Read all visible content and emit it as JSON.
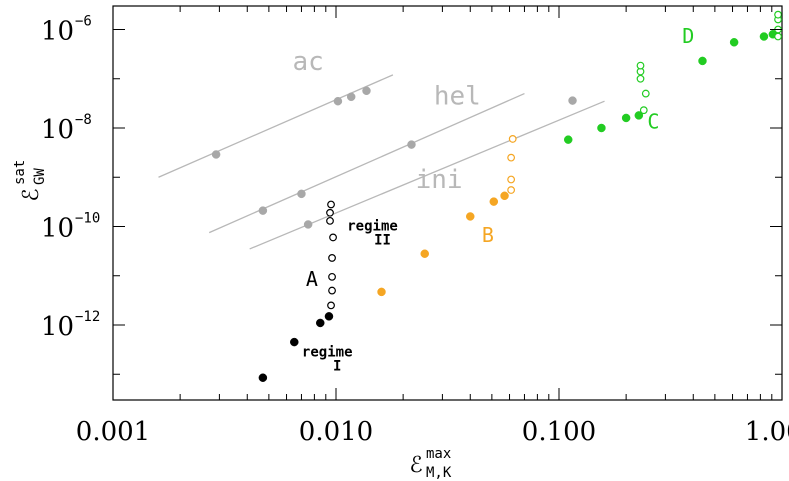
{
  "chart_data": {
    "type": "scatter",
    "xscale": "log",
    "yscale": "log",
    "xlim": [
      0.001,
      1.0
    ],
    "ylim": [
      3e-14,
      3e-06
    ],
    "xlabel": {
      "main": "ℰ",
      "sup": "max",
      "sub": "M,K"
    },
    "ylabel": {
      "main": "ℰ",
      "sup": "sat",
      "sub": "GW"
    },
    "x_ticks": [
      {
        "value": 0.001,
        "label": "0.001"
      },
      {
        "value": 0.01,
        "label": "0.010"
      },
      {
        "value": 0.1,
        "label": "0.100"
      },
      {
        "value": 1.0,
        "label": "1.000"
      }
    ],
    "y_ticks": [
      {
        "value": 1e-12,
        "base": "10",
        "exp": "−12"
      },
      {
        "value": 1e-10,
        "base": "10",
        "exp": "−10"
      },
      {
        "value": 1e-08,
        "base": "10",
        "exp": "−8"
      },
      {
        "value": 1e-06,
        "base": "10",
        "exp": "−6"
      }
    ],
    "y_minor_ticks": [
      1e-13,
      1e-11,
      1e-09,
      1e-07
    ],
    "reference_lines": [
      {
        "label": "ac",
        "x": [
          0.0016,
          0.018
        ],
        "y": [
          1e-09,
          1.2e-07
        ],
        "label_at": [
          0.0075,
          1.5e-07
        ]
      },
      {
        "label": "hel",
        "x": [
          0.0027,
          0.07
        ],
        "y": [
          7.5e-11,
          5e-08
        ],
        "label_at": [
          0.035,
          3e-08
        ]
      },
      {
        "label": "ini",
        "x": [
          0.0041,
          0.16
        ],
        "y": [
          3.5e-11,
          3.5e-08
        ],
        "label_at": [
          0.029,
          6e-10
        ]
      }
    ],
    "series": [
      {
        "color": "#a8a8a8",
        "filled": true,
        "points": [
          [
            0.0029,
            2.9e-09
          ],
          [
            0.0102,
            3.5e-08
          ],
          [
            0.0117,
            4.3e-08
          ],
          [
            0.0137,
            5.7e-08
          ],
          [
            0.0047,
            2.1e-10
          ],
          [
            0.007,
            4.6e-10
          ],
          [
            0.0218,
            4.6e-09
          ],
          [
            0.0075,
            1.1e-10
          ],
          [
            0.115,
            3.6e-08
          ]
        ]
      },
      {
        "color": "#000000",
        "filled": true,
        "points": [
          [
            0.0047,
            8.5e-14
          ],
          [
            0.0065,
            4.5e-13
          ],
          [
            0.0085,
            1.1e-12
          ],
          [
            0.0093,
            1.5e-12
          ]
        ]
      },
      {
        "color": "#000000",
        "filled": false,
        "points": [
          [
            0.0095,
            2.5e-12
          ],
          [
            0.0096,
            5e-12
          ],
          [
            0.0096,
            9.5e-12
          ],
          [
            0.0096,
            2.3e-11
          ],
          [
            0.0097,
            6e-11
          ],
          [
            0.0094,
            1.3e-10
          ],
          [
            0.0094,
            1.9e-10
          ],
          [
            0.0095,
            2.8e-10
          ]
        ]
      },
      {
        "color": "#f5a623",
        "filled": true,
        "points": [
          [
            0.016,
            4.7e-12
          ],
          [
            0.025,
            2.8e-11
          ],
          [
            0.04,
            1.6e-10
          ],
          [
            0.051,
            3.2e-10
          ],
          [
            0.057,
            4.2e-10
          ]
        ]
      },
      {
        "color": "#f5a623",
        "filled": false,
        "points": [
          [
            0.061,
            5.5e-10
          ],
          [
            0.061,
            9e-10
          ],
          [
            0.061,
            2.5e-09
          ],
          [
            0.062,
            6e-09
          ]
        ]
      },
      {
        "color": "#22cc22",
        "filled": true,
        "points": [
          [
            0.11,
            5.8e-09
          ],
          [
            0.155,
            1e-08
          ],
          [
            0.2,
            1.6e-08
          ],
          [
            0.228,
            1.8e-08
          ],
          [
            0.44,
            2.3e-07
          ],
          [
            0.61,
            5.5e-07
          ],
          [
            0.83,
            7.2e-07
          ],
          [
            0.91,
            8e-07
          ]
        ]
      },
      {
        "color": "#22cc22",
        "filled": false,
        "points": [
          [
            0.24,
            2.3e-08
          ],
          [
            0.245,
            5e-08
          ],
          [
            0.232,
            1e-07
          ],
          [
            0.232,
            1.4e-07
          ],
          [
            0.232,
            1.85e-07
          ],
          [
            0.96,
            7.2e-07
          ],
          [
            0.96,
            1e-06
          ],
          [
            0.96,
            1.6e-06
          ],
          [
            0.96,
            2e-06
          ]
        ]
      }
    ],
    "group_labels": [
      {
        "text": "A",
        "color": "#000000",
        "at": [
          0.0078,
          6.2e-12
        ]
      },
      {
        "text": "B",
        "color": "#f5a623",
        "at": [
          0.048,
          4.8e-11
        ]
      },
      {
        "text": "C",
        "color": "#22cc22",
        "at": [
          0.265,
          9.8e-09
        ]
      },
      {
        "text": "D",
        "color": "#22cc22",
        "at": [
          0.38,
          5.3e-07
        ]
      }
    ],
    "regime_labels": [
      {
        "line1": "regime",
        "line2": "II",
        "at": [
          0.0107,
          8.2e-11
        ]
      },
      {
        "line1": "regime",
        "line2": "I",
        "at": [
          0.0067,
          2.3e-13
        ]
      }
    ]
  }
}
